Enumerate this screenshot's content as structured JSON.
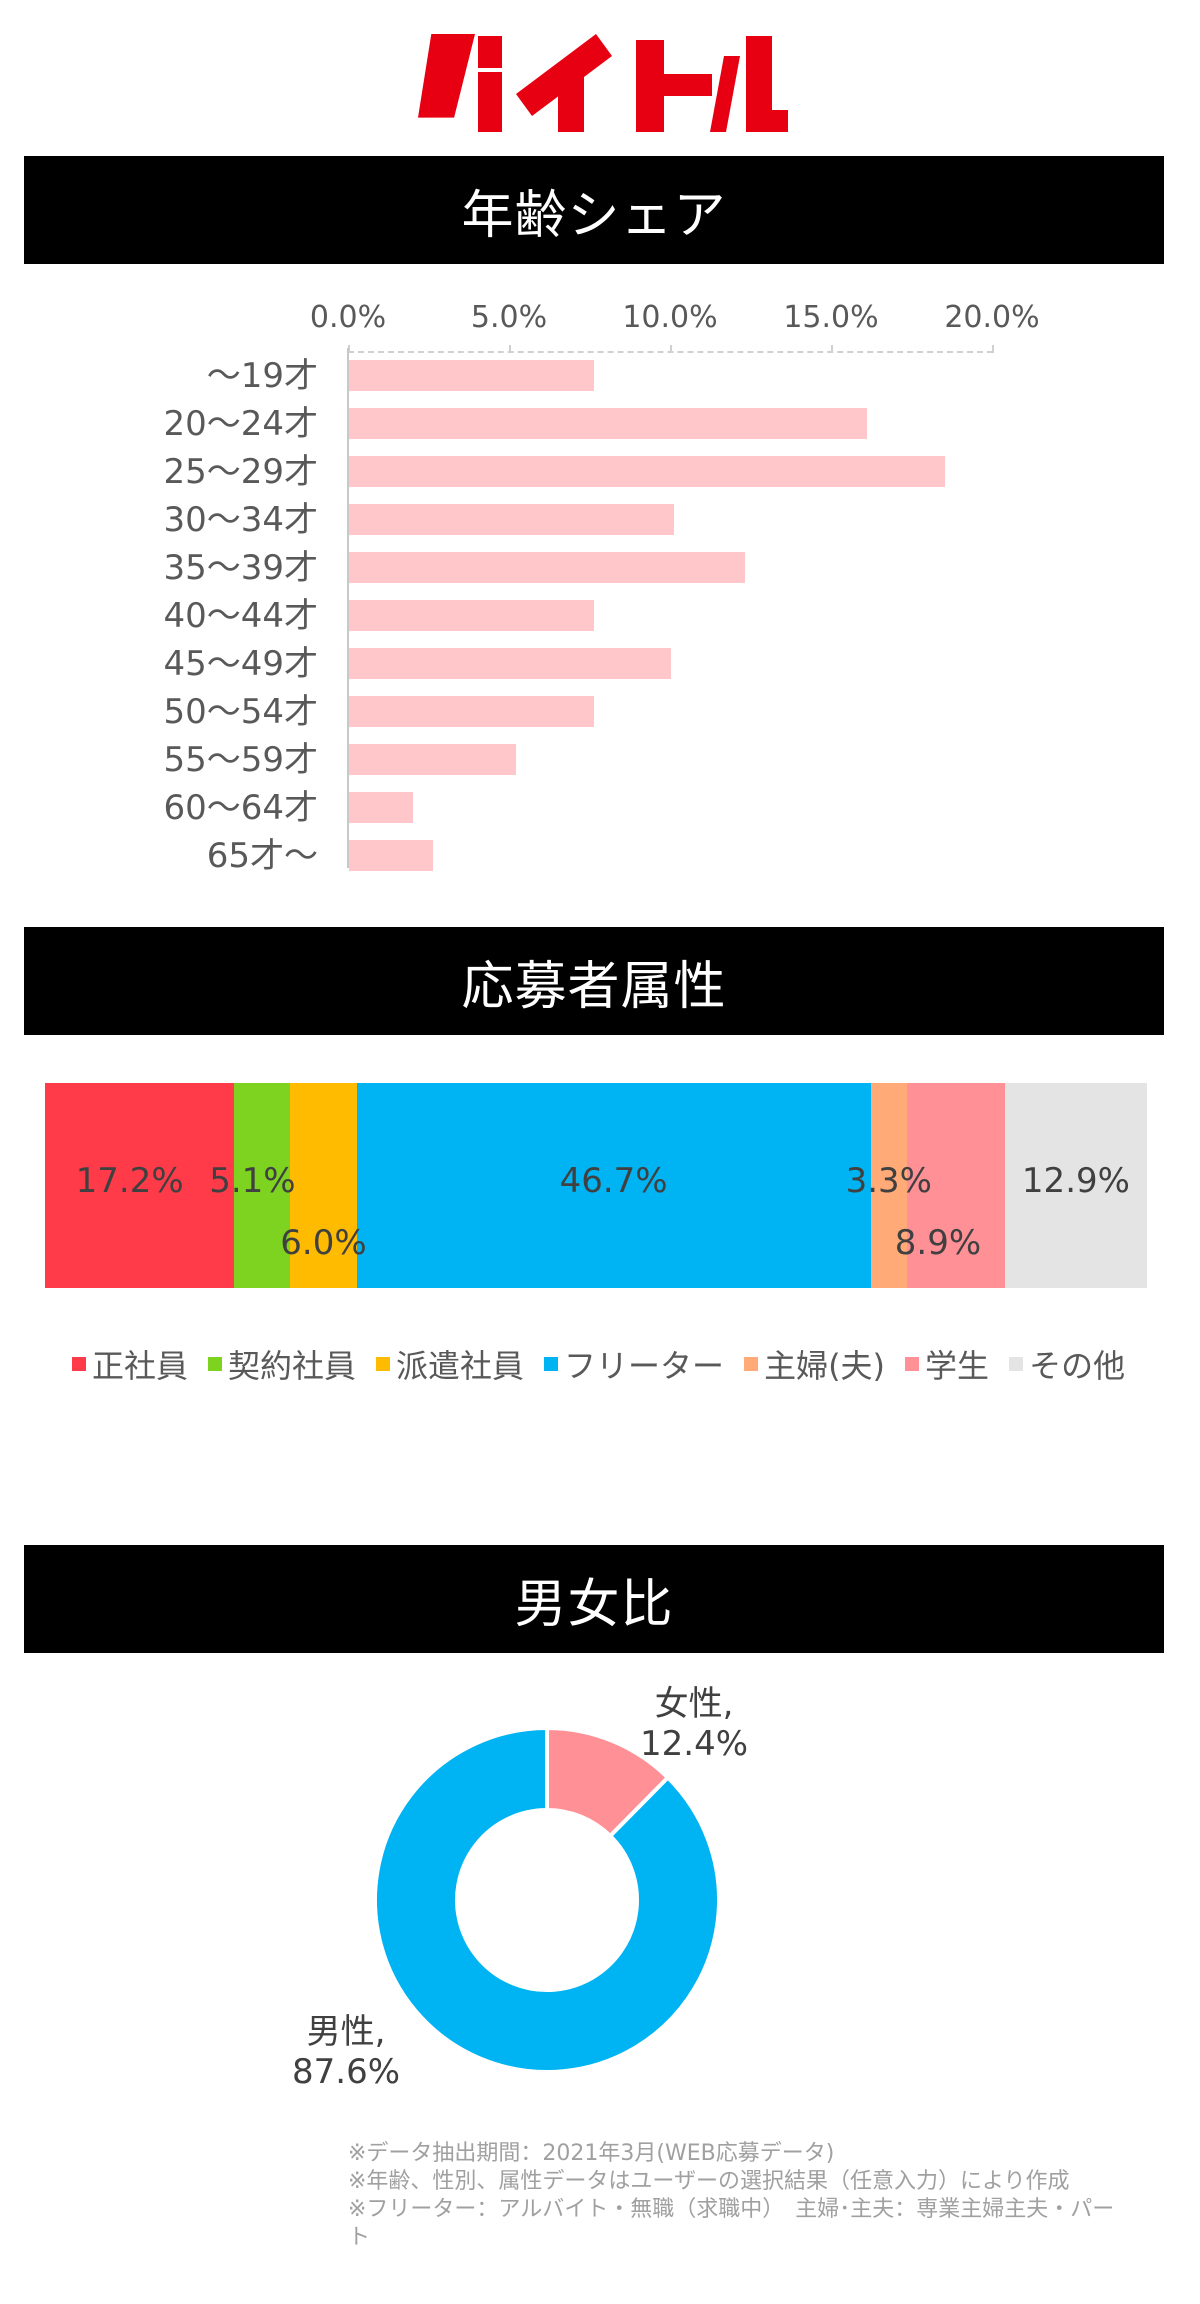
{
  "brand": {
    "logo_text": "バイトル",
    "logo_color": "#e60012"
  },
  "sections": {
    "age": {
      "title": "年齢シェア"
    },
    "attribute": {
      "title": "応募者属性"
    },
    "gender": {
      "title": "男女比"
    }
  },
  "chart_data": [
    {
      "type": "bar",
      "orientation": "horizontal",
      "title": "年齢シェア",
      "categories": [
        "～19才",
        "20～24才",
        "25～29才",
        "30～34才",
        "35～39才",
        "40～44才",
        "45～49才",
        "50～54才",
        "55～59才",
        "60～64才",
        "65才～"
      ],
      "values": [
        7.6,
        16.1,
        18.5,
        10.1,
        12.3,
        7.6,
        10.0,
        7.6,
        5.2,
        2.0,
        2.6
      ],
      "unit": "%",
      "xlim": [
        0,
        20
      ],
      "x_ticks": [
        "0.0%",
        "5.0%",
        "10.0%",
        "15.0%",
        "20.0%"
      ],
      "axis_position": "top",
      "bar_color": "#ffc7ca",
      "grid": false
    },
    {
      "type": "bar",
      "orientation": "horizontal-stacked-100",
      "title": "応募者属性",
      "series": [
        {
          "name": "正社員",
          "value": 17.2,
          "label": "17.2%",
          "color": "#ff3b4a"
        },
        {
          "name": "契約社員",
          "value": 5.1,
          "label": "5.1%",
          "color": "#7ed321"
        },
        {
          "name": "派遣社員",
          "value": 6.0,
          "label": "6.0%",
          "color": "#ffbb00"
        },
        {
          "name": "フリーター",
          "value": 46.7,
          "label": "46.7%",
          "color": "#00b3f2"
        },
        {
          "name": "主婦(夫)",
          "value": 3.3,
          "label": "3.3%",
          "color": "#ffaa77"
        },
        {
          "name": "学生",
          "value": 8.9,
          "label": "8.9%",
          "color": "#ff9096"
        },
        {
          "name": "その他",
          "value": 12.9,
          "label": "12.9%",
          "color": "#e4e4e4"
        }
      ],
      "legend_position": "bottom"
    },
    {
      "type": "pie",
      "variant": "donut",
      "title": "男女比",
      "slices": [
        {
          "name": "女性",
          "value": 12.4,
          "label": "女性,",
          "value_label": "12.4%",
          "color": "#ff9096"
        },
        {
          "name": "男性",
          "value": 87.6,
          "label": "男性,",
          "value_label": "87.6%",
          "color": "#00b3f2"
        }
      ]
    }
  ],
  "age_chart": {
    "ticks": [
      "0.0%",
      "5.0%",
      "10.0%",
      "15.0%",
      "20.0%"
    ],
    "rows": [
      {
        "label": "～19才",
        "value": 7.6
      },
      {
        "label": "20～24才",
        "value": 16.1
      },
      {
        "label": "25～29才",
        "value": 18.5
      },
      {
        "label": "30～34才",
        "value": 10.1
      },
      {
        "label": "35～39才",
        "value": 12.3
      },
      {
        "label": "40～44才",
        "value": 7.6
      },
      {
        "label": "45～49才",
        "value": 10.0
      },
      {
        "label": "50～54才",
        "value": 7.6
      },
      {
        "label": "55～59才",
        "value": 5.2
      },
      {
        "label": "60～64才",
        "value": 2.0
      },
      {
        "label": "65才～",
        "value": 2.6
      }
    ]
  },
  "attribute_chart": {
    "segments": [
      {
        "name": "正社員",
        "label": "17.2%",
        "value": 17.2,
        "color": "#ff3b4a"
      },
      {
        "name": "契約社員",
        "label": "5.1%",
        "value": 5.1,
        "color": "#7ed321"
      },
      {
        "name": "派遣社員",
        "label": "6.0%",
        "value": 6.0,
        "color": "#ffbb00"
      },
      {
        "name": "フリーター",
        "label": "46.7%",
        "value": 46.7,
        "color": "#00b3f2"
      },
      {
        "name": "主婦(夫)",
        "label": "3.3%",
        "value": 3.3,
        "color": "#ffaa77"
      },
      {
        "name": "学生",
        "label": "8.9%",
        "value": 8.9,
        "color": "#ff9096"
      },
      {
        "name": "その他",
        "label": "12.9%",
        "value": 12.9,
        "color": "#e4e4e4"
      }
    ]
  },
  "gender_chart": {
    "female": {
      "label": "女性,",
      "value_label": "12.4%"
    },
    "male": {
      "label": "男性,",
      "value_label": "87.6%"
    }
  },
  "footnotes": [
    "※データ抽出期間：2021年3月(WEB応募データ)",
    "※年齢、性別、属性データはユーザーの選択結果（任意入力）により作成",
    "※フリーター：アルバイト・無職（求職中）　主婦･主夫：専業主婦主夫・パート"
  ]
}
